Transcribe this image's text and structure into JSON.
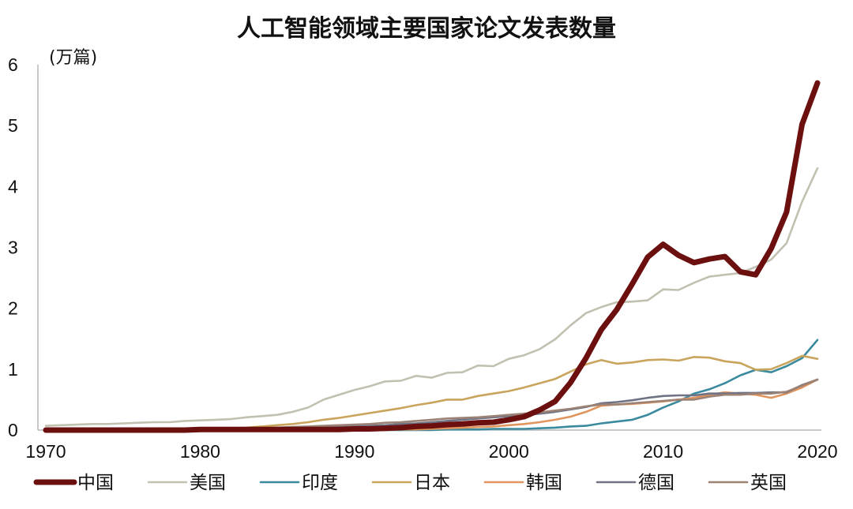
{
  "chart_data": {
    "type": "line",
    "title": "人工智能领域主要国家论文发表数量",
    "unit_label": "(万篇)",
    "xlabel": "",
    "ylabel": "",
    "xlim": [
      1970,
      2020
    ],
    "ylim": [
      0,
      6
    ],
    "x_ticks": [
      "1970",
      "1980",
      "1990",
      "2000",
      "2010",
      "2020"
    ],
    "y_ticks": [
      "0",
      "1",
      "2",
      "3",
      "4",
      "5",
      "6"
    ],
    "grid": false,
    "legend_position": "bottom",
    "x": [
      1970,
      1971,
      1972,
      1973,
      1974,
      1975,
      1976,
      1977,
      1978,
      1979,
      1980,
      1981,
      1982,
      1983,
      1984,
      1985,
      1986,
      1987,
      1988,
      1989,
      1990,
      1991,
      1992,
      1993,
      1994,
      1995,
      1996,
      1997,
      1998,
      1999,
      2000,
      2001,
      2002,
      2003,
      2004,
      2005,
      2006,
      2007,
      2008,
      2009,
      2010,
      2011,
      2012,
      2013,
      2014,
      2015,
      2016,
      2017,
      2018,
      2019,
      2020
    ],
    "series": [
      {
        "name": "中国",
        "color": "#6b0f0f",
        "values": [
          0,
          0,
          0,
          0,
          0,
          0,
          0,
          0,
          0,
          0,
          0.01,
          0.01,
          0.01,
          0.01,
          0.01,
          0.01,
          0.01,
          0.01,
          0.01,
          0.01,
          0.02,
          0.02,
          0.03,
          0.04,
          0.06,
          0.07,
          0.09,
          0.1,
          0.12,
          0.13,
          0.17,
          0.22,
          0.33,
          0.47,
          0.78,
          1.18,
          1.65,
          1.98,
          2.4,
          2.84,
          3.05,
          2.87,
          2.75,
          2.81,
          2.85,
          2.6,
          2.55,
          2.98,
          3.58,
          5.02,
          5.7
        ]
      },
      {
        "name": "美国",
        "color": "#c2c0b0",
        "values": [
          0.07,
          0.08,
          0.09,
          0.1,
          0.1,
          0.11,
          0.12,
          0.13,
          0.13,
          0.15,
          0.16,
          0.17,
          0.18,
          0.21,
          0.23,
          0.25,
          0.3,
          0.37,
          0.5,
          0.58,
          0.66,
          0.72,
          0.8,
          0.81,
          0.89,
          0.86,
          0.94,
          0.95,
          1.06,
          1.05,
          1.17,
          1.23,
          1.33,
          1.49,
          1.72,
          1.92,
          2.02,
          2.1,
          2.11,
          2.13,
          2.31,
          2.3,
          2.42,
          2.52,
          2.55,
          2.58,
          2.68,
          2.8,
          3.07,
          3.75,
          4.3
        ]
      },
      {
        "name": "印度",
        "color": "#3a8a9e",
        "values": [
          0,
          0,
          0,
          0,
          0,
          0,
          0,
          0,
          0,
          0,
          0,
          0,
          0,
          0,
          0,
          0,
          0,
          0,
          0,
          0,
          0,
          0,
          0,
          0,
          0,
          0,
          0.01,
          0.01,
          0.01,
          0.02,
          0.02,
          0.02,
          0.03,
          0.04,
          0.06,
          0.07,
          0.11,
          0.14,
          0.17,
          0.25,
          0.37,
          0.47,
          0.6,
          0.67,
          0.77,
          0.9,
          0.99,
          0.95,
          1.05,
          1.18,
          1.48
        ]
      },
      {
        "name": "日本",
        "color": "#c9a45c",
        "values": [
          0,
          0,
          0,
          0,
          0,
          0,
          0,
          0,
          0.01,
          0.01,
          0.02,
          0.02,
          0.03,
          0.04,
          0.06,
          0.08,
          0.1,
          0.13,
          0.17,
          0.2,
          0.24,
          0.28,
          0.32,
          0.36,
          0.41,
          0.45,
          0.5,
          0.5,
          0.56,
          0.6,
          0.64,
          0.7,
          0.77,
          0.84,
          0.96,
          1.08,
          1.15,
          1.09,
          1.11,
          1.15,
          1.16,
          1.14,
          1.2,
          1.19,
          1.13,
          1.1,
          0.99,
          1.0,
          1.1,
          1.22,
          1.17
        ]
      },
      {
        "name": "韩国",
        "color": "#e0955f",
        "values": [
          0,
          0,
          0,
          0,
          0,
          0,
          0,
          0,
          0,
          0,
          0,
          0,
          0,
          0,
          0,
          0,
          0,
          0,
          0,
          0,
          0,
          0,
          0,
          0.01,
          0.01,
          0.02,
          0.03,
          0.04,
          0.05,
          0.06,
          0.08,
          0.1,
          0.13,
          0.17,
          0.22,
          0.3,
          0.4,
          0.42,
          0.43,
          0.45,
          0.47,
          0.5,
          0.53,
          0.58,
          0.62,
          0.6,
          0.58,
          0.53,
          0.6,
          0.7,
          0.83
        ]
      },
      {
        "name": "德国",
        "color": "#6e7284",
        "values": [
          0,
          0,
          0,
          0,
          0,
          0,
          0,
          0,
          0,
          0,
          0.01,
          0.01,
          0.01,
          0.01,
          0.02,
          0.02,
          0.03,
          0.03,
          0.04,
          0.05,
          0.06,
          0.07,
          0.08,
          0.1,
          0.11,
          0.13,
          0.15,
          0.17,
          0.19,
          0.21,
          0.23,
          0.25,
          0.27,
          0.3,
          0.34,
          0.38,
          0.44,
          0.46,
          0.49,
          0.53,
          0.56,
          0.57,
          0.57,
          0.6,
          0.6,
          0.61,
          0.61,
          0.62,
          0.62,
          0.74,
          0.83
        ]
      },
      {
        "name": "英国",
        "color": "#9b8275",
        "values": [
          0,
          0,
          0,
          0,
          0,
          0,
          0,
          0,
          0,
          0,
          0.01,
          0.01,
          0.01,
          0.02,
          0.03,
          0.04,
          0.05,
          0.06,
          0.07,
          0.08,
          0.09,
          0.1,
          0.12,
          0.13,
          0.15,
          0.17,
          0.19,
          0.2,
          0.21,
          0.23,
          0.25,
          0.27,
          0.29,
          0.32,
          0.35,
          0.39,
          0.42,
          0.42,
          0.44,
          0.46,
          0.48,
          0.5,
          0.5,
          0.55,
          0.58,
          0.58,
          0.6,
          0.6,
          0.63,
          0.73,
          0.83
        ]
      }
    ]
  }
}
